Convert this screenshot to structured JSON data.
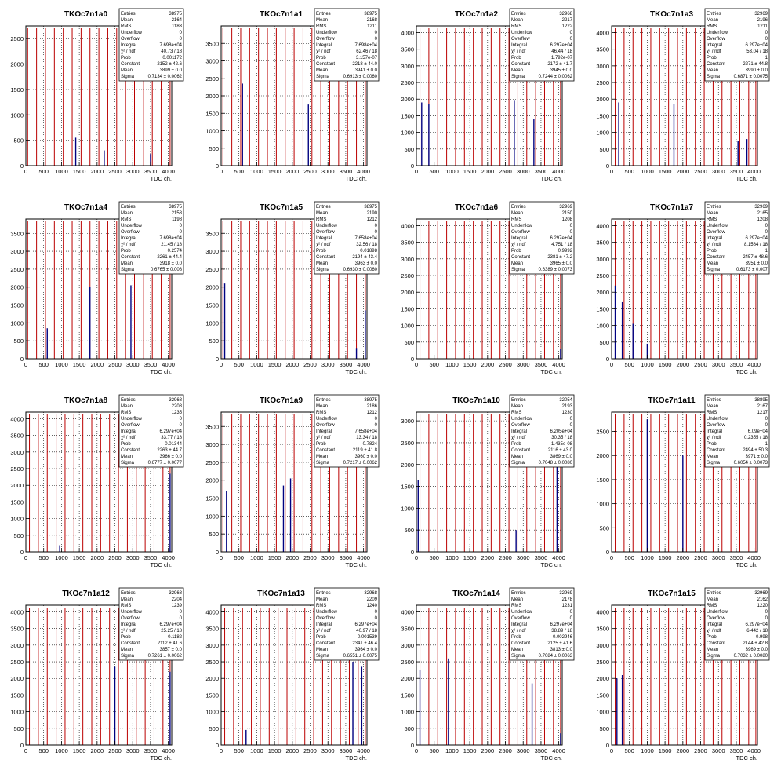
{
  "x_axis_label": "TDC ch.",
  "stat_labels": [
    "Entries",
    "Mean",
    "RMS",
    "Underflow",
    "Overflow",
    "Integral",
    "χ² / ndf",
    "Prob",
    "Constant",
    "Mean",
    "Sigma"
  ],
  "colors": {
    "hist": "#000080",
    "fit": "#bb0000",
    "axis": "#000000",
    "grid": "#000000"
  },
  "chart_data": [
    {
      "type": "histogram",
      "title": "TKOc7n1a0",
      "xlim": [
        0,
        4096
      ],
      "ylim": [
        0,
        2750
      ],
      "xticks": [
        0,
        500,
        1000,
        1500,
        2000,
        2500,
        3000,
        3500,
        4000
      ],
      "yticks": [
        0,
        500,
        1000,
        1500,
        2000,
        2500
      ],
      "peaks": [
        {
          "x": 1400,
          "y": 550
        },
        {
          "x": 2200,
          "y": 300
        },
        {
          "x": 3500,
          "y": 230
        }
      ],
      "fit_lines_x": [
        50,
        300,
        550,
        800,
        1050,
        1300,
        1550,
        1800,
        2050,
        2300,
        2550,
        2800,
        3050,
        3300,
        3550,
        3800,
        4050
      ],
      "stats": [
        "38975",
        "2164",
        "1183",
        "0",
        "0",
        "7.698e+04",
        "40.73 / 18",
        "0.001172",
        "2152 ± 42.6",
        "3899 ± 0.0",
        "0.7134 ± 0.0062"
      ]
    },
    {
      "type": "histogram",
      "title": "TKOc7n1a1",
      "xlim": [
        0,
        4096
      ],
      "ylim": [
        0,
        4000
      ],
      "xticks": [
        0,
        500,
        1000,
        1500,
        2000,
        2500,
        3000,
        3500,
        4000
      ],
      "yticks": [
        0,
        500,
        1000,
        1500,
        2000,
        2500,
        3000,
        3500
      ],
      "peaks": [
        {
          "x": 600,
          "y": 2350
        },
        {
          "x": 2450,
          "y": 1750
        }
      ],
      "fit_lines_x": [
        50,
        300,
        550,
        800,
        1050,
        1300,
        1550,
        1800,
        2050,
        2300,
        2550,
        2800,
        3050,
        3300,
        3550,
        3800,
        4050
      ],
      "stats": [
        "38975",
        "2168",
        "1211",
        "0",
        "0",
        "7.698e+04",
        "62.46 / 18",
        "3.157e-07",
        "2218 ± 44.0",
        "3941 ± 0.0",
        "0.6913 ± 0.0060"
      ]
    },
    {
      "type": "histogram",
      "title": "TKOc7n1a2",
      "xlim": [
        0,
        4096
      ],
      "ylim": [
        0,
        4200
      ],
      "xticks": [
        0,
        500,
        1000,
        1500,
        2000,
        2500,
        3000,
        3500,
        4000
      ],
      "yticks": [
        0,
        500,
        1000,
        1500,
        2000,
        2500,
        3000,
        3500,
        4000
      ],
      "peaks": [
        {
          "x": 150,
          "y": 1900
        },
        {
          "x": 350,
          "y": 1850
        },
        {
          "x": 2750,
          "y": 1950
        },
        {
          "x": 3300,
          "y": 1400
        }
      ],
      "fit_lines_x": [
        100,
        350,
        600,
        850,
        1100,
        1350,
        1600,
        1850,
        2100,
        2350,
        2600,
        2850,
        3100,
        3350,
        3600,
        3850,
        4050
      ],
      "stats": [
        "32968",
        "2217",
        "1222",
        "0",
        "0",
        "6.297e+04",
        "46.44 / 18",
        "1.792e-07",
        "2172 ± 41.7",
        "3945 ± 0.0",
        "0.7244 ± 0.0062"
      ]
    },
    {
      "type": "histogram",
      "title": "TKOc7n1a3",
      "xlim": [
        0,
        4096
      ],
      "ylim": [
        0,
        4200
      ],
      "xticks": [
        0,
        500,
        1000,
        1500,
        2000,
        2500,
        3000,
        3500,
        4000
      ],
      "yticks": [
        0,
        500,
        1000,
        1500,
        2000,
        2500,
        3000,
        3500,
        4000
      ],
      "peaks": [
        {
          "x": 200,
          "y": 1900
        },
        {
          "x": 1750,
          "y": 1850
        },
        {
          "x": 3550,
          "y": 750
        },
        {
          "x": 3800,
          "y": 800
        }
      ],
      "fit_lines_x": [
        100,
        350,
        600,
        850,
        1100,
        1350,
        1600,
        1850,
        2100,
        2350,
        2600,
        2850,
        3100,
        3350,
        3600,
        3850,
        4050
      ],
      "stats": [
        "32969",
        "2196",
        "1211",
        "0",
        "0",
        "6.297e+04",
        "53.04 / 18",
        "1",
        "2271 ± 44.8",
        "3990 ± 0.0",
        "0.6871 ± 0.0075"
      ]
    },
    {
      "type": "histogram",
      "title": "TKOc7n1a4",
      "xlim": [
        0,
        4096
      ],
      "ylim": [
        0,
        3900
      ],
      "xticks": [
        0,
        500,
        1000,
        1500,
        2000,
        2500,
        3000,
        3500,
        4000
      ],
      "yticks": [
        0,
        500,
        1000,
        1500,
        2000,
        2500,
        3000,
        3500
      ],
      "peaks": [
        {
          "x": 600,
          "y": 850
        },
        {
          "x": 1800,
          "y": 2000
        },
        {
          "x": 2950,
          "y": 2050
        }
      ],
      "fit_lines_x": [
        50,
        300,
        550,
        800,
        1050,
        1300,
        1550,
        1800,
        2050,
        2300,
        2550,
        2800,
        3050,
        3300,
        3550,
        3800,
        4050
      ],
      "stats": [
        "38975",
        "2158",
        "1198",
        "0",
        "0",
        "7.698e+04",
        "21.45 / 18",
        "0.2574",
        "2261 ± 44.4",
        "3918 ± 0.0",
        "0.6765 ± 0.008"
      ]
    },
    {
      "type": "histogram",
      "title": "TKOc7n1a5",
      "xlim": [
        0,
        4096
      ],
      "ylim": [
        0,
        3900
      ],
      "xticks": [
        0,
        500,
        1000,
        1500,
        2000,
        2500,
        3000,
        3500,
        4000
      ],
      "yticks": [
        0,
        500,
        1000,
        1500,
        2000,
        2500,
        3000,
        3500
      ],
      "peaks": [
        {
          "x": 100,
          "y": 2100
        },
        {
          "x": 4050,
          "y": 1350
        },
        {
          "x": 3800,
          "y": 300
        }
      ],
      "fit_lines_x": [
        50,
        300,
        550,
        800,
        1050,
        1300,
        1550,
        1800,
        2050,
        2300,
        2550,
        2800,
        3050,
        3300,
        3550,
        3800,
        4050
      ],
      "stats": [
        "38975",
        "2190",
        "1212",
        "0",
        "0",
        "7.658e+04",
        "32.56 / 18",
        "0.01898",
        "2194 ± 43.4",
        "3963 ± 0.0",
        "0.6930 ± 0.0060"
      ]
    },
    {
      "type": "histogram",
      "title": "TKOc7n1a6",
      "xlim": [
        0,
        4096
      ],
      "ylim": [
        0,
        4200
      ],
      "xticks": [
        0,
        500,
        1000,
        1500,
        2000,
        2500,
        3000,
        3500,
        4000
      ],
      "yticks": [
        0,
        500,
        1000,
        1500,
        2000,
        2500,
        3000,
        3500,
        4000
      ],
      "peaks": [
        {
          "x": 4050,
          "y": 300
        }
      ],
      "fit_lines_x": [
        100,
        350,
        600,
        850,
        1100,
        1350,
        1600,
        1850,
        2100,
        2350,
        2600,
        2850,
        3100,
        3350,
        3600,
        3850,
        4050
      ],
      "stats": [
        "32969",
        "2150",
        "1208",
        "0",
        "0",
        "6.297e+04",
        "4.751 / 18",
        "0.9992",
        "2381 ± 47.2",
        "3965 ± 0.0",
        "0.6389 ± 0.0073"
      ]
    },
    {
      "type": "histogram",
      "title": "TKOc7n1a7",
      "xlim": [
        0,
        4096
      ],
      "ylim": [
        0,
        4200
      ],
      "xticks": [
        0,
        500,
        1000,
        1500,
        2000,
        2500,
        3000,
        3500,
        4000
      ],
      "yticks": [
        0,
        500,
        1000,
        1500,
        2000,
        2500,
        3000,
        3500,
        4000
      ],
      "peaks": [
        {
          "x": 100,
          "y": 2200
        },
        {
          "x": 300,
          "y": 1700
        },
        {
          "x": 600,
          "y": 1050
        },
        {
          "x": 1000,
          "y": 450
        }
      ],
      "fit_lines_x": [
        100,
        350,
        600,
        850,
        1100,
        1350,
        1600,
        1850,
        2100,
        2350,
        2600,
        2850,
        3100,
        3350,
        3600,
        3850,
        4050
      ],
      "stats": [
        "32969",
        "2165",
        "1208",
        "0",
        "0",
        "6.297e+04",
        "8.1584 / 18",
        "1",
        "2457 ± 48.6",
        "3951 ± 0.0",
        "0.6173 ± 0.007"
      ]
    },
    {
      "type": "histogram",
      "title": "TKOc7n1a8",
      "xlim": [
        0,
        4096
      ],
      "ylim": [
        0,
        4200
      ],
      "xticks": [
        0,
        500,
        1000,
        1500,
        2000,
        2500,
        3000,
        3500,
        4000
      ],
      "yticks": [
        0,
        500,
        1000,
        1500,
        2000,
        2500,
        3000,
        3500,
        4000
      ],
      "peaks": [
        {
          "x": 4050,
          "y": 2350
        },
        {
          "x": 950,
          "y": 200
        }
      ],
      "fit_lines_x": [
        100,
        350,
        600,
        850,
        1100,
        1350,
        1600,
        1850,
        2100,
        2350,
        2600,
        2850,
        3100,
        3350,
        3600,
        3850,
        4050
      ],
      "stats": [
        "32968",
        "2208",
        "1235",
        "0",
        "0",
        "6.297e+04",
        "33.77 / 18",
        "0.01344",
        "2263 ± 44.7",
        "3966 ± 0.0",
        "0.6777 ± 0.0077"
      ]
    },
    {
      "type": "histogram",
      "title": "TKOc7n1a9",
      "xlim": [
        0,
        4096
      ],
      "ylim": [
        0,
        3900
      ],
      "xticks": [
        0,
        500,
        1000,
        1500,
        2000,
        2500,
        3000,
        3500,
        4000
      ],
      "yticks": [
        0,
        500,
        1000,
        1500,
        2000,
        2500,
        3000,
        3500
      ],
      "peaks": [
        {
          "x": 150,
          "y": 1700
        },
        {
          "x": 1750,
          "y": 1850
        },
        {
          "x": 1950,
          "y": 2050
        }
      ],
      "fit_lines_x": [
        50,
        300,
        550,
        800,
        1050,
        1300,
        1550,
        1800,
        2050,
        2300,
        2550,
        2800,
        3050,
        3300,
        3550,
        3800,
        4050
      ],
      "stats": [
        "38975",
        "2186",
        "1212",
        "0",
        "0",
        "7.658e+04",
        "13.34 / 18",
        "0.7824",
        "2119 ± 41.8",
        "3960 ± 0.0",
        "0.7217 ± 0.0062"
      ]
    },
    {
      "type": "histogram",
      "title": "TKOc7n1a10",
      "xlim": [
        0,
        4096
      ],
      "ylim": [
        0,
        3200
      ],
      "xticks": [
        0,
        500,
        1000,
        1500,
        2000,
        2500,
        3000,
        3500,
        4000
      ],
      "yticks": [
        0,
        500,
        1000,
        1500,
        2000,
        2500,
        3000
      ],
      "peaks": [
        {
          "x": 50,
          "y": 1650
        },
        {
          "x": 2800,
          "y": 500
        },
        {
          "x": 3950,
          "y": 2050
        }
      ],
      "fit_lines_x": [
        100,
        350,
        600,
        850,
        1100,
        1350,
        1600,
        1850,
        2100,
        2350,
        2600,
        2850,
        3100,
        3350,
        3600,
        3850,
        4050
      ],
      "stats": [
        "32054",
        "2193",
        "1230",
        "0",
        "0",
        "6.205e+04",
        "30.35 / 18",
        "1.435e-08",
        "2116 ± 43.0",
        "3869 ± 0.0",
        "0.7048 ± 0.0080"
      ]
    },
    {
      "type": "histogram",
      "title": "TKOc7n1a11",
      "xlim": [
        0,
        4096
      ],
      "ylim": [
        0,
        2900
      ],
      "xticks": [
        0,
        500,
        1000,
        1500,
        2000,
        2500,
        3000,
        3500,
        4000
      ],
      "yticks": [
        0,
        500,
        1000,
        1500,
        2000,
        2500
      ],
      "peaks": [
        {
          "x": 1000,
          "y": 2750
        },
        {
          "x": 2000,
          "y": 2000
        }
      ],
      "fit_lines_x": [
        100,
        350,
        600,
        850,
        1100,
        1350,
        1600,
        1850,
        2100,
        2350,
        2600,
        2850,
        3100,
        3350,
        3600,
        3850,
        4050
      ],
      "stats": [
        "38895",
        "2167",
        "1217",
        "0",
        "0",
        "6.09e+04",
        "0.2355 / 18",
        "1",
        "2494 ± 50.3",
        "3971 ± 0.0",
        "0.6054 ± 0.0073"
      ]
    },
    {
      "type": "histogram",
      "title": "TKOc7n1a12",
      "xlim": [
        0,
        4096
      ],
      "ylim": [
        0,
        4200
      ],
      "xticks": [
        0,
        500,
        1000,
        1500,
        2000,
        2500,
        3000,
        3500,
        4000
      ],
      "yticks": [
        0,
        500,
        1000,
        1500,
        2000,
        2500,
        3000,
        3500,
        4000
      ],
      "peaks": [
        {
          "x": 2500,
          "y": 2350
        },
        {
          "x": 4050,
          "y": 2200
        }
      ],
      "fit_lines_x": [
        100,
        350,
        600,
        850,
        1100,
        1350,
        1600,
        1850,
        2100,
        2350,
        2600,
        2850,
        3100,
        3350,
        3600,
        3850,
        4050
      ],
      "stats": [
        "32968",
        "2204",
        "1239",
        "0",
        "0",
        "6.297e+04",
        "25.25 / 18",
        "0.1182",
        "2112 ± 41.6",
        "3857 ± 0.0",
        "0.7261 ± 0.0062"
      ]
    },
    {
      "type": "histogram",
      "title": "TKOc7n1a13",
      "xlim": [
        0,
        4096
      ],
      "ylim": [
        0,
        4200
      ],
      "xticks": [
        0,
        500,
        1000,
        1500,
        2000,
        2500,
        3000,
        3500,
        4000
      ],
      "yticks": [
        0,
        500,
        1000,
        1500,
        2000,
        2500,
        3000,
        3500,
        4000
      ],
      "peaks": [
        {
          "x": 700,
          "y": 450
        },
        {
          "x": 3700,
          "y": 2500
        },
        {
          "x": 3950,
          "y": 2350
        }
      ],
      "fit_lines_x": [
        100,
        350,
        600,
        850,
        1100,
        1350,
        1600,
        1850,
        2100,
        2350,
        2600,
        2850,
        3100,
        3350,
        3600,
        3850,
        4050
      ],
      "stats": [
        "32968",
        "2209",
        "1240",
        "0",
        "0",
        "6.297e+04",
        "40.97 / 18",
        "0.001539",
        "2341 ± 46.4",
        "3964 ± 0.0",
        "0.6551 ± 0.0075"
      ]
    },
    {
      "type": "histogram",
      "title": "TKOc7n1a14",
      "xlim": [
        0,
        4096
      ],
      "ylim": [
        0,
        4200
      ],
      "xticks": [
        0,
        500,
        1000,
        1500,
        2000,
        2500,
        3000,
        3500,
        4000
      ],
      "yticks": [
        0,
        500,
        1000,
        1500,
        2000,
        2500,
        3000,
        3500,
        4000
      ],
      "peaks": [
        {
          "x": 100,
          "y": 2250
        },
        {
          "x": 900,
          "y": 2600
        },
        {
          "x": 3250,
          "y": 1850
        },
        {
          "x": 4050,
          "y": 350
        }
      ],
      "fit_lines_x": [
        100,
        350,
        600,
        850,
        1100,
        1350,
        1600,
        1850,
        2100,
        2350,
        2600,
        2850,
        3100,
        3350,
        3600,
        3850,
        4050
      ],
      "stats": [
        "32969",
        "2178",
        "1231",
        "0",
        "0",
        "6.297e+04",
        "38.89 / 18",
        "0.002946",
        "2125 ± 41.6",
        "3813 ± 0.0",
        "0.7084 ± 0.0063"
      ]
    },
    {
      "type": "histogram",
      "title": "TKOc7n1a15",
      "xlim": [
        0,
        4096
      ],
      "ylim": [
        0,
        4200
      ],
      "xticks": [
        0,
        500,
        1000,
        1500,
        2000,
        2500,
        3000,
        3500,
        4000
      ],
      "yticks": [
        0,
        500,
        1000,
        1500,
        2000,
        2500,
        3000,
        3500,
        4000
      ],
      "peaks": [
        {
          "x": 150,
          "y": 2000
        },
        {
          "x": 300,
          "y": 2100
        }
      ],
      "fit_lines_x": [
        100,
        350,
        600,
        850,
        1100,
        1350,
        1600,
        1850,
        2100,
        2350,
        2600,
        2850,
        3100,
        3350,
        3600,
        3850,
        4050
      ],
      "stats": [
        "32969",
        "2162",
        "1220",
        "0",
        "0",
        "6.297e+04",
        "6.442 / 18",
        "0.998",
        "2144 ± 42.8",
        "3969 ± 0.0",
        "0.7032 ± 0.0080"
      ]
    }
  ]
}
